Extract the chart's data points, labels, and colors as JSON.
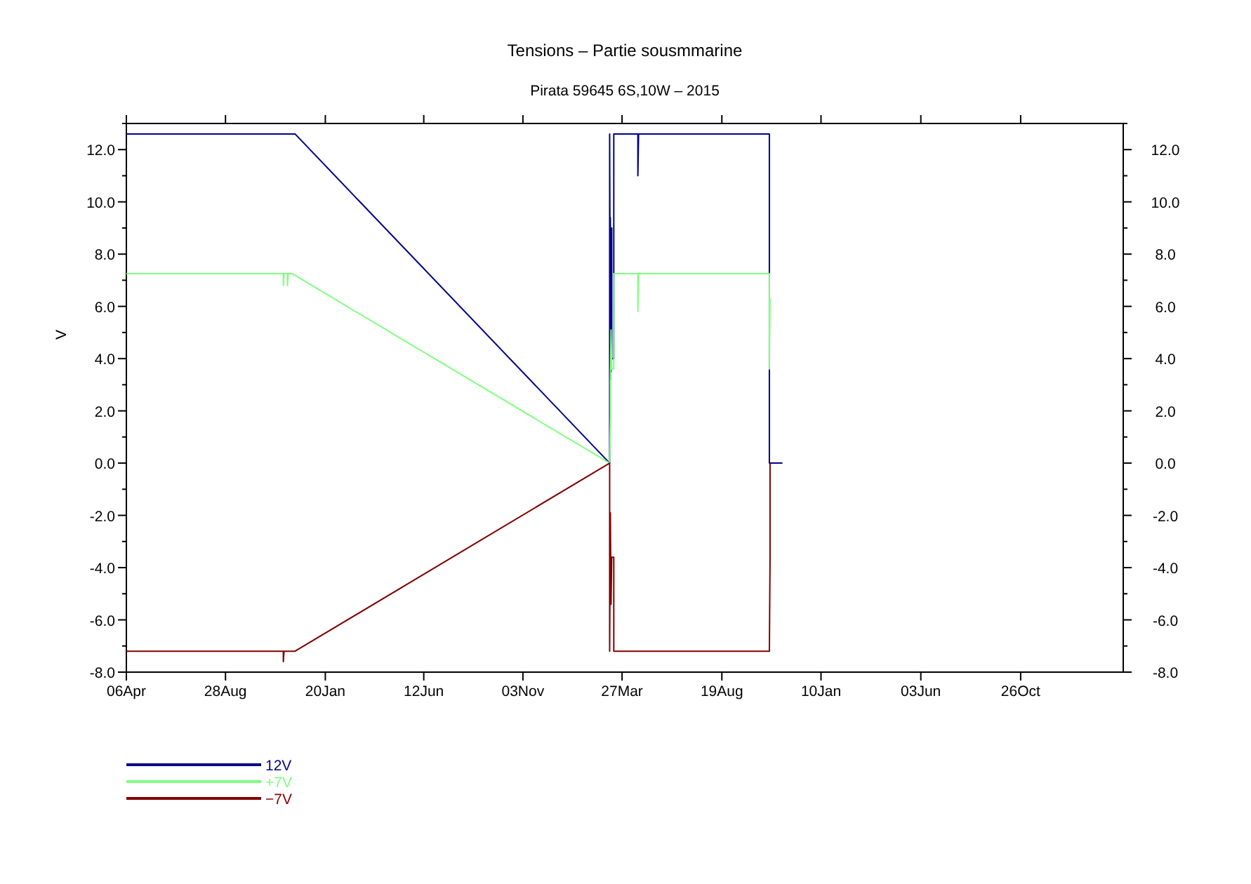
{
  "chart_data": {
    "type": "line",
    "title": "Tensions – Partie sousmmarine",
    "subtitle": "Pirata 59645 6S,10W – 2015",
    "ylabel": "V",
    "xlim": [
      "2013-04-06",
      "2017-03-24"
    ],
    "xticks": [
      {
        "value": "2013-04-06",
        "label": "06Apr"
      },
      {
        "value": "2013-08-28",
        "label": "28Aug"
      },
      {
        "value": "2014-01-20",
        "label": "20Jan"
      },
      {
        "value": "2014-06-12",
        "label": "12Jun"
      },
      {
        "value": "2014-11-03",
        "label": "03Nov"
      },
      {
        "value": "2015-03-27",
        "label": "27Mar"
      },
      {
        "value": "2015-08-19",
        "label": "19Aug"
      },
      {
        "value": "2016-01-10",
        "label": "10Jan"
      },
      {
        "value": "2016-06-03",
        "label": "03Jun"
      },
      {
        "value": "2016-10-26",
        "label": "26Oct"
      }
    ],
    "ylim": [
      -8,
      13
    ],
    "yticks": [
      {
        "value": -8,
        "label": "-8.0"
      },
      {
        "value": -7,
        "label": null
      },
      {
        "value": -6,
        "label": "-6.0"
      },
      {
        "value": -5,
        "label": null
      },
      {
        "value": -4,
        "label": "-4.0"
      },
      {
        "value": -3,
        "label": null
      },
      {
        "value": -2,
        "label": "-2.0"
      },
      {
        "value": -1,
        "label": null
      },
      {
        "value": 0,
        "label": "0.0"
      },
      {
        "value": 1,
        "label": null
      },
      {
        "value": 2,
        "label": "2.0"
      },
      {
        "value": 3,
        "label": null
      },
      {
        "value": 4,
        "label": "4.0"
      },
      {
        "value": 5,
        "label": null
      },
      {
        "value": 6,
        "label": "6.0"
      },
      {
        "value": 7,
        "label": null
      },
      {
        "value": 8,
        "label": "8.0"
      },
      {
        "value": 9,
        "label": null
      },
      {
        "value": 10,
        "label": "10.0"
      },
      {
        "value": 11,
        "label": null
      },
      {
        "value": 12,
        "label": "12.0"
      },
      {
        "value": 13,
        "label": null
      }
    ],
    "y2lim": [
      -8,
      13
    ],
    "y2ticks": [
      {
        "value": -8,
        "label": "-8.0"
      },
      {
        "value": -7,
        "label": null
      },
      {
        "value": -6,
        "label": "-6.0"
      },
      {
        "value": -5,
        "label": null
      },
      {
        "value": -4,
        "label": "-4.0"
      },
      {
        "value": -3,
        "label": null
      },
      {
        "value": -2,
        "label": "-2.0"
      },
      {
        "value": -1,
        "label": null
      },
      {
        "value": 0,
        "label": "0.0"
      },
      {
        "value": 1,
        "label": null
      },
      {
        "value": 2,
        "label": "2.0"
      },
      {
        "value": 3,
        "label": null
      },
      {
        "value": 4,
        "label": "4.0"
      },
      {
        "value": 5,
        "label": null
      },
      {
        "value": 6,
        "label": "6.0"
      },
      {
        "value": 7,
        "label": null
      },
      {
        "value": 8,
        "label": "8.0"
      },
      {
        "value": 9,
        "label": null
      },
      {
        "value": 10,
        "label": "10.0"
      },
      {
        "value": 11,
        "label": null
      },
      {
        "value": 12,
        "label": "12.0"
      },
      {
        "value": 13,
        "label": null
      }
    ],
    "grid": false,
    "legend": "bottom left",
    "marker": "none",
    "line_style": "solid",
    "series": [
      {
        "name": "12V",
        "color": "#00008b",
        "x": [
          "2013-04-06",
          "2013-12-07",
          "2015-03-09",
          "2015-03-09",
          "2015-03-10",
          "2015-03-10",
          "2015-03-11",
          "2015-03-12",
          "2015-03-12",
          "2015-03-15",
          "2015-03-15",
          "2015-04-19",
          "2015-04-19",
          "2015-04-20",
          "2015-10-27",
          "2015-10-27",
          "2015-11-15"
        ],
        "values": [
          12.6,
          12.6,
          0,
          12.6,
          3.2,
          9.4,
          3.5,
          9,
          4,
          4,
          12.6,
          12.6,
          11,
          12.6,
          12.6,
          0,
          0
        ]
      },
      {
        "name": "+7V",
        "color": "#80ff80",
        "x": [
          "2013-04-06",
          "2013-11-20",
          "2013-11-20",
          "2013-11-21",
          "2013-11-26",
          "2013-11-26",
          "2013-11-27",
          "2013-12-03",
          "2015-03-09",
          "2015-03-10",
          "2015-03-10",
          "2015-03-11",
          "2015-03-12",
          "2015-03-15",
          "2015-03-15",
          "2015-04-19",
          "2015-04-19",
          "2015-04-20",
          "2015-10-27",
          "2015-10-27",
          "2015-10-28"
        ],
        "values": [
          7.25,
          7.25,
          6.8,
          7.25,
          7.25,
          6.8,
          7.25,
          7.25,
          0,
          1.7,
          3.1,
          5.1,
          3.6,
          3.6,
          7.25,
          7.25,
          5.8,
          7.25,
          7.25,
          3.6,
          6.3
        ]
      },
      {
        "name": "−7V",
        "color": "#800000",
        "x": [
          "2013-04-06",
          "2013-11-20",
          "2013-11-20",
          "2013-11-21",
          "2013-12-07",
          "2015-03-09",
          "2015-03-09",
          "2015-03-10",
          "2015-03-11",
          "2015-03-12",
          "2015-03-15",
          "2015-03-15",
          "2015-10-27",
          "2015-10-28",
          "2015-10-28"
        ],
        "values": [
          -7.2,
          -7.2,
          -7.6,
          -7.2,
          -7.2,
          0,
          -7.2,
          -1.9,
          -5.4,
          -3.6,
          -3.6,
          -7.2,
          -7.2,
          -3.6,
          0
        ]
      }
    ]
  }
}
